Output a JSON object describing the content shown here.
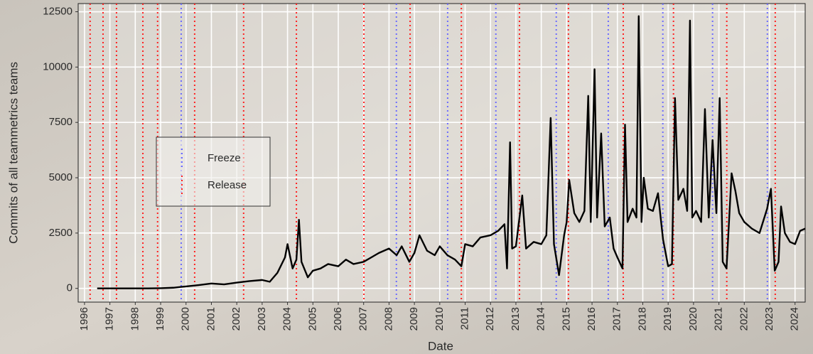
{
  "chart_data": {
    "type": "line",
    "x_label": "Date",
    "y_label": "Commits of all teammetrics teams",
    "x": [
      1996.5,
      1997,
      1997.5,
      1998,
      1998.5,
      1999,
      1999.5,
      2000,
      2000.5,
      2001,
      2001.5,
      2002,
      2002.5,
      2003,
      2003.3,
      2003.6,
      2003.9,
      2004.0,
      2004.2,
      2004.35,
      2004.45,
      2004.55,
      2004.8,
      2005.0,
      2005.3,
      2005.6,
      2006.0,
      2006.3,
      2006.6,
      2007.0,
      2007.3,
      2007.6,
      2008.0,
      2008.3,
      2008.5,
      2008.8,
      2009.0,
      2009.2,
      2009.5,
      2009.8,
      2010.0,
      2010.3,
      2010.6,
      2010.85,
      2011.0,
      2011.3,
      2011.6,
      2012.0,
      2012.3,
      2012.55,
      2012.65,
      2012.77,
      2012.85,
      2013.0,
      2013.25,
      2013.4,
      2013.7,
      2014.0,
      2014.2,
      2014.37,
      2014.5,
      2014.7,
      2014.9,
      2015.0,
      2015.1,
      2015.3,
      2015.5,
      2015.7,
      2015.85,
      2015.95,
      2016.1,
      2016.2,
      2016.36,
      2016.5,
      2016.7,
      2016.85,
      2017.0,
      2017.2,
      2017.3,
      2017.4,
      2017.6,
      2017.75,
      2017.84,
      2017.95,
      2018.04,
      2018.2,
      2018.4,
      2018.6,
      2018.8,
      2019.0,
      2019.15,
      2019.27,
      2019.4,
      2019.6,
      2019.75,
      2019.86,
      2019.95,
      2020.1,
      2020.3,
      2020.45,
      2020.6,
      2020.75,
      2020.9,
      2021.03,
      2021.15,
      2021.3,
      2021.5,
      2021.65,
      2021.8,
      2022.0,
      2022.3,
      2022.6,
      2022.9,
      2023.05,
      2023.2,
      2023.35,
      2023.45,
      2023.6,
      2023.8,
      2024.0,
      2024.2,
      2024.4
    ],
    "values": [
      0,
      0,
      0,
      0,
      0,
      10,
      30,
      90,
      150,
      220,
      180,
      260,
      330,
      380,
      300,
      700,
      1400,
      2000,
      900,
      1300,
      3100,
      1200,
      500,
      800,
      900,
      1100,
      1000,
      1300,
      1100,
      1200,
      1400,
      1600,
      1800,
      1500,
      1900,
      1200,
      1600,
      2400,
      1700,
      1500,
      1900,
      1500,
      1300,
      1000,
      2000,
      1900,
      2300,
      2400,
      2600,
      2900,
      900,
      6600,
      1800,
      1900,
      4200,
      1800,
      2100,
      2000,
      2400,
      7700,
      2000,
      600,
      2400,
      3000,
      4900,
      3400,
      3000,
      3500,
      8700,
      3000,
      9900,
      3200,
      7000,
      2800,
      3200,
      1800,
      1400,
      900,
      7400,
      3000,
      3600,
      3200,
      12300,
      3000,
      5000,
      3600,
      3500,
      4300,
      2200,
      1000,
      1100,
      8600,
      4000,
      4500,
      3500,
      12100,
      3200,
      3500,
      3000,
      8100,
      3200,
      6700,
      3400,
      8600,
      1200,
      900,
      5200,
      4400,
      3400,
      3000,
      2700,
      2500,
      3600,
      4500,
      800,
      1200,
      3700,
      2500,
      2100,
      2000,
      2600,
      2700
    ],
    "color": "#000000",
    "vlines": [
      {
        "name": "Freeze",
        "color": "#6b6bff",
        "x": [
          1999.81,
          2008.29,
          2010.31,
          2012.21,
          2014.59,
          2016.64,
          2018.79,
          2020.75,
          2022.91
        ]
      },
      {
        "name": "Release",
        "color": "#ff2020",
        "x": [
          1996.22,
          1996.73,
          1997.26,
          1998.3,
          1998.88,
          2000.34,
          2002.27,
          2004.35,
          2007.01,
          2008.83,
          2010.85,
          2013.14,
          2015.07,
          2017.23,
          2019.21,
          2021.31,
          2023.22
        ]
      }
    ],
    "xlim": [
      1995.75,
      2024.4
    ],
    "xticks": [
      1996,
      1997,
      1998,
      1999,
      2000,
      2001,
      2002,
      2003,
      2004,
      2005,
      2006,
      2007,
      2008,
      2009,
      2010,
      2011,
      2012,
      2013,
      2014,
      2015,
      2016,
      2017,
      2018,
      2019,
      2020,
      2021,
      2022,
      2023,
      2024
    ],
    "ylim": [
      -620,
      12870
    ],
    "yticks": [
      0,
      2500,
      5000,
      7500,
      10000,
      12500
    ],
    "grid": true,
    "legend": "center-left"
  }
}
